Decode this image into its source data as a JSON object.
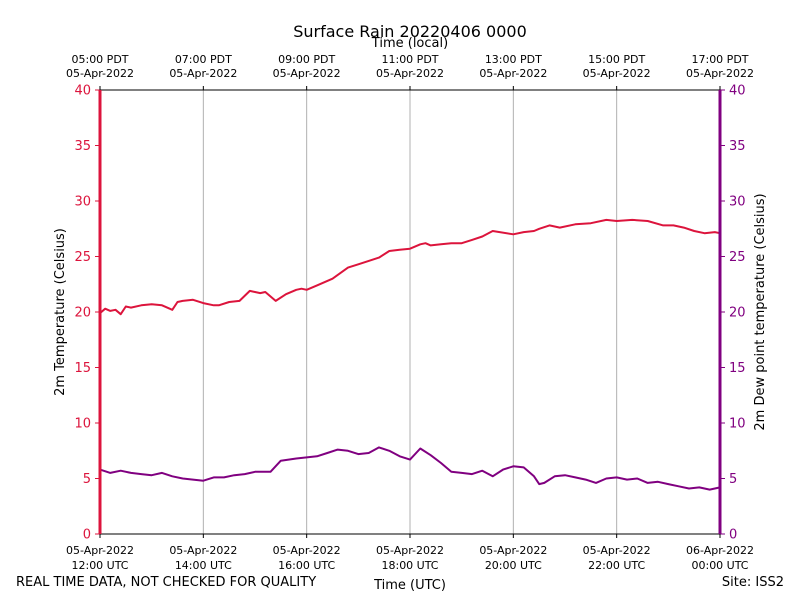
{
  "chart_data": {
    "type": "line",
    "title": "Surface Rain 20220406 0000",
    "top_axis_label": "Time (local)",
    "xlabel": "Time (UTC)",
    "ylabel_left": "2m Temperature (Celsius)",
    "ylabel_right": "2m Dew point temperature (Celsius)",
    "ylim_left": [
      0,
      40
    ],
    "ylim_right": [
      0,
      40
    ],
    "xlim_hours_utc": [
      12,
      24
    ],
    "grid": "vertical at x ticks",
    "yticks": [
      "0",
      "5",
      "10",
      "15",
      "20",
      "25",
      "30",
      "35",
      "40"
    ],
    "bottom_ticks": [
      {
        "hour": 12,
        "date": "05-Apr-2022",
        "time": "12:00 UTC"
      },
      {
        "hour": 14,
        "date": "05-Apr-2022",
        "time": "14:00 UTC"
      },
      {
        "hour": 16,
        "date": "05-Apr-2022",
        "time": "16:00 UTC"
      },
      {
        "hour": 18,
        "date": "05-Apr-2022",
        "time": "18:00 UTC"
      },
      {
        "hour": 20,
        "date": "05-Apr-2022",
        "time": "20:00 UTC"
      },
      {
        "hour": 22,
        "date": "05-Apr-2022",
        "time": "22:00 UTC"
      },
      {
        "hour": 24,
        "date": "06-Apr-2022",
        "time": "00:00 UTC"
      }
    ],
    "top_ticks": [
      {
        "hour": 12,
        "time": "05:00 PDT",
        "date": "05-Apr-2022"
      },
      {
        "hour": 14,
        "time": "07:00 PDT",
        "date": "05-Apr-2022"
      },
      {
        "hour": 16,
        "time": "09:00 PDT",
        "date": "05-Apr-2022"
      },
      {
        "hour": 18,
        "time": "11:00 PDT",
        "date": "05-Apr-2022"
      },
      {
        "hour": 20,
        "time": "13:00 PDT",
        "date": "05-Apr-2022"
      },
      {
        "hour": 22,
        "time": "15:00 PDT",
        "date": "05-Apr-2022"
      },
      {
        "hour": 24,
        "time": "17:00 PDT",
        "date": "05-Apr-2022"
      }
    ],
    "series": [
      {
        "name": "2m Temperature",
        "axis": "left",
        "color": "#dc143c",
        "x": [
          12.0,
          12.1,
          12.2,
          12.3,
          12.4,
          12.5,
          12.6,
          12.8,
          13.0,
          13.2,
          13.4,
          13.5,
          13.6,
          13.8,
          14.0,
          14.2,
          14.3,
          14.5,
          14.7,
          14.9,
          15.0,
          15.1,
          15.2,
          15.4,
          15.6,
          15.8,
          15.9,
          16.0,
          16.2,
          16.5,
          16.8,
          17.0,
          17.2,
          17.4,
          17.6,
          17.8,
          18.0,
          18.2,
          18.3,
          18.4,
          18.6,
          18.8,
          19.0,
          19.2,
          19.4,
          19.6,
          20.0,
          20.2,
          20.4,
          20.5,
          20.7,
          20.9,
          21.2,
          21.5,
          21.8,
          22.0,
          22.3,
          22.6,
          22.9,
          23.1,
          23.3,
          23.5,
          23.7,
          23.9,
          24.0
        ],
        "values": [
          19.9,
          20.3,
          20.1,
          20.2,
          19.8,
          20.5,
          20.4,
          20.6,
          20.7,
          20.6,
          20.2,
          20.9,
          21.0,
          21.1,
          20.8,
          20.6,
          20.6,
          20.9,
          21.0,
          21.9,
          21.8,
          21.7,
          21.8,
          21.0,
          21.6,
          22.0,
          22.1,
          22.0,
          22.4,
          23.0,
          24.0,
          24.3,
          24.6,
          24.9,
          25.5,
          25.6,
          25.7,
          26.1,
          26.2,
          26.0,
          26.1,
          26.2,
          26.2,
          26.5,
          26.8,
          27.3,
          27.0,
          27.2,
          27.3,
          27.5,
          27.8,
          27.6,
          27.9,
          28.0,
          28.3,
          28.2,
          28.3,
          28.2,
          27.8,
          27.8,
          27.6,
          27.3,
          27.1,
          27.2,
          27.1
        ]
      },
      {
        "name": "2m Dew point temperature",
        "axis": "right",
        "color": "#800080",
        "x": [
          12.0,
          12.2,
          12.4,
          12.6,
          12.8,
          13.0,
          13.2,
          13.4,
          13.6,
          13.8,
          14.0,
          14.2,
          14.4,
          14.6,
          14.8,
          15.0,
          15.1,
          15.2,
          15.3,
          15.5,
          15.8,
          16.0,
          16.2,
          16.4,
          16.6,
          16.8,
          17.0,
          17.2,
          17.4,
          17.6,
          17.8,
          18.0,
          18.2,
          18.4,
          18.6,
          18.8,
          19.0,
          19.2,
          19.4,
          19.6,
          19.8,
          20.0,
          20.2,
          20.4,
          20.5,
          20.6,
          20.8,
          21.0,
          21.2,
          21.4,
          21.6,
          21.8,
          22.0,
          22.2,
          22.4,
          22.6,
          22.8,
          23.0,
          23.2,
          23.4,
          23.6,
          23.8,
          24.0
        ],
        "values": [
          5.8,
          5.5,
          5.7,
          5.5,
          5.4,
          5.3,
          5.5,
          5.2,
          5.0,
          4.9,
          4.8,
          5.1,
          5.1,
          5.3,
          5.4,
          5.6,
          5.6,
          5.6,
          5.6,
          6.6,
          6.8,
          6.9,
          7.0,
          7.3,
          7.6,
          7.5,
          7.2,
          7.3,
          7.8,
          7.5,
          7.0,
          6.7,
          7.7,
          7.1,
          6.4,
          5.6,
          5.5,
          5.4,
          5.7,
          5.2,
          5.8,
          6.1,
          6.0,
          5.2,
          4.5,
          4.6,
          5.2,
          5.3,
          5.1,
          4.9,
          4.6,
          5.0,
          5.1,
          4.9,
          5.0,
          4.6,
          4.7,
          4.5,
          4.3,
          4.1,
          4.2,
          4.0,
          4.2
        ]
      }
    ]
  },
  "footer": {
    "disclaimer": "REAL TIME DATA, NOT CHECKED FOR QUALITY",
    "site": "Site: ISS2"
  },
  "colors": {
    "temperature": "#dc143c",
    "dewpoint": "#800080",
    "grid": "#b0b0b0"
  }
}
